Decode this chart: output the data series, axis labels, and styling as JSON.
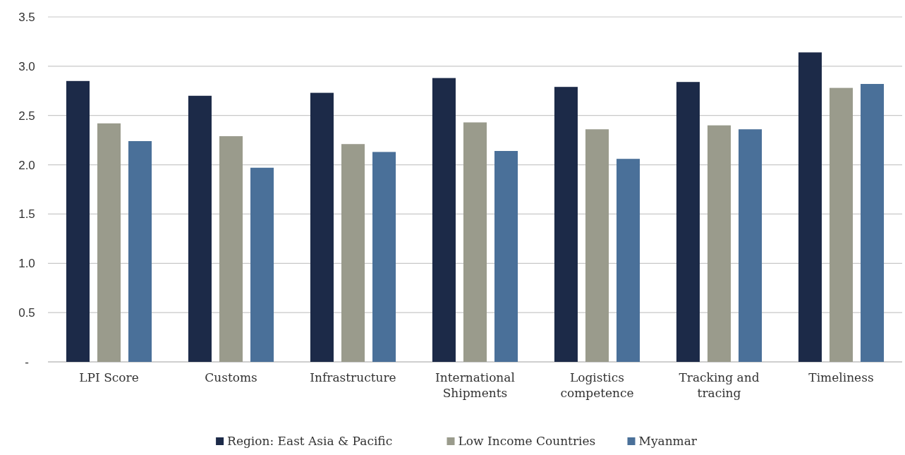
{
  "chart_data": {
    "type": "bar",
    "categories": [
      "LPI Score",
      "Customs",
      "Infrastructure",
      "International Shipments",
      "Logistics competence",
      "Tracking and tracing",
      "Timeliness"
    ],
    "series": [
      {
        "name": "Region: East Asia & Pacific",
        "color": "#1c2a48",
        "values": [
          2.85,
          2.7,
          2.73,
          2.88,
          2.79,
          2.84,
          3.14
        ]
      },
      {
        "name": "Low Income Countries",
        "color": "#9a9b8c",
        "values": [
          2.42,
          2.29,
          2.21,
          2.43,
          2.36,
          2.4,
          2.78
        ]
      },
      {
        "name": "Myanmar",
        "color": "#4a7099",
        "values": [
          2.24,
          1.97,
          2.13,
          2.14,
          2.06,
          2.36,
          2.82
        ]
      }
    ],
    "ylim": [
      0,
      3.5
    ],
    "yticks": [
      {
        "value": 0,
        "label": "-"
      },
      0.5,
      {
        "value": 1,
        "label": "1.0"
      },
      1.5,
      {
        "value": 2,
        "label": "2.0"
      },
      2.5,
      {
        "value": 3,
        "label": "3.0"
      },
      3.5
    ],
    "grid": "y",
    "legend": "bottom"
  }
}
